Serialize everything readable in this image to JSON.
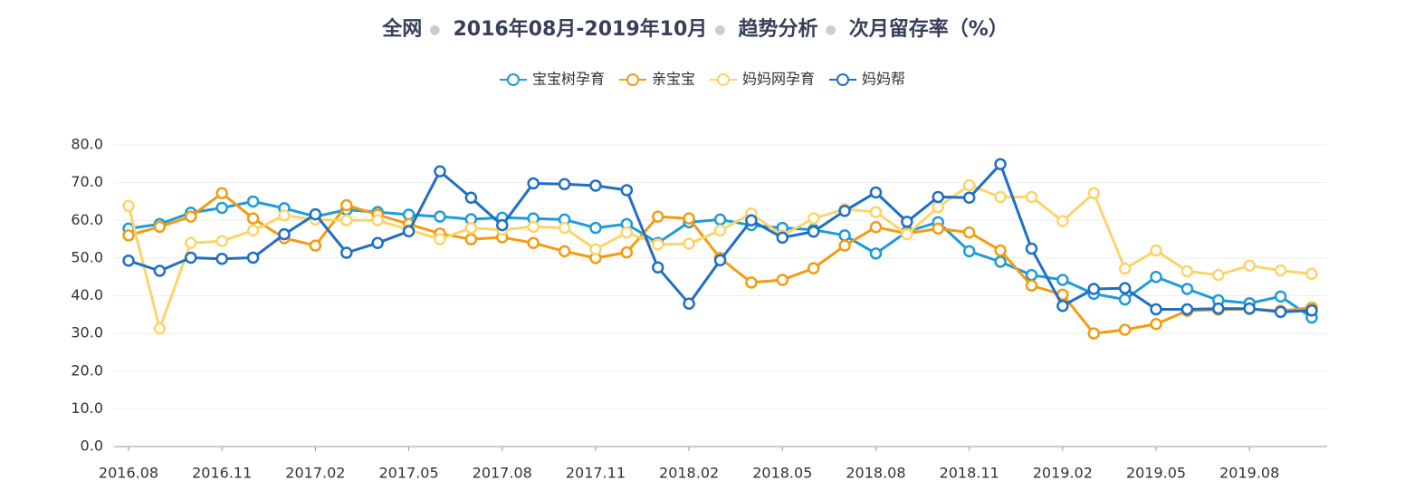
{
  "chart_data": {
    "type": "line",
    "title": [
      "全网",
      "2016年08月-2019年10月",
      "趋势分析",
      "次月留存率（%）"
    ],
    "categories": [
      "2016.08",
      null,
      null,
      "2016.11",
      null,
      null,
      "2017.02",
      null,
      null,
      "2017.05",
      null,
      null,
      "2017.08",
      null,
      null,
      "2017.11",
      null,
      null,
      "2018.02",
      null,
      null,
      "2018.05",
      null,
      null,
      "2018.08",
      null,
      null,
      "2018.11",
      null,
      null,
      "2019.02",
      null,
      null,
      "2019.05",
      null,
      null,
      "2019.08",
      null,
      null
    ],
    "series": [
      {
        "name": "宝宝树孕育",
        "color": "#1f9bd7",
        "values": [
          57.8,
          59,
          62,
          63.3,
          65,
          63.2,
          61,
          62.8,
          62.2,
          61.5,
          61,
          60.3,
          60.7,
          60.5,
          60.2,
          58,
          59,
          54,
          59.5,
          60.2,
          58.7,
          58,
          57.5,
          56,
          51.2,
          57,
          59.5,
          51.8,
          49,
          45.5,
          44.2,
          40.5,
          39,
          45,
          41.8,
          38.8,
          38,
          39.8,
          34.2
        ]
      },
      {
        "name": "亲宝宝",
        "color": "#f39c12",
        "values": [
          56,
          58.3,
          61,
          67.2,
          60.5,
          55.3,
          53.3,
          64,
          61.5,
          59,
          56.5,
          55,
          55.5,
          54,
          51.8,
          50,
          51.5,
          61,
          60.5,
          50,
          43.5,
          44.2,
          47.3,
          53.3,
          58.2,
          56.5,
          57.8,
          56.8,
          52,
          42.7,
          40.3,
          30,
          31,
          32.5,
          36,
          36.3,
          36.5,
          36,
          36.8
        ]
      },
      {
        "name": "妈妈网孕育",
        "color": "#fbd46b",
        "values": [
          63.8,
          31.3,
          54,
          54.5,
          57.3,
          61.3,
          60.2,
          60,
          60,
          57.5,
          55,
          58,
          57.5,
          58.3,
          58,
          52.3,
          56.8,
          53.6,
          53.8,
          57.3,
          61.8,
          56,
          60.5,
          63,
          62.2,
          56.3,
          63.5,
          69.3,
          66.2,
          66.2,
          59.8,
          67.2,
          47.2,
          52,
          46.5,
          45.5,
          48,
          46.7,
          45.8
        ]
      },
      {
        "name": "妈妈帮",
        "color": "#1f6fc5",
        "values": [
          49.3,
          46.6,
          50.1,
          49.8,
          50.1,
          56.3,
          61.6,
          51.4,
          54,
          57.1,
          73,
          66,
          58.7,
          69.8,
          69.6,
          69.2,
          68,
          47.5,
          37.9,
          49.4,
          60,
          55.4,
          57,
          62.5,
          67.4,
          59.6,
          66.2,
          66,
          74.9,
          52.5,
          37.3,
          41.8,
          42,
          36.4,
          36.4,
          36.6,
          36.6,
          35.7,
          36.1
        ]
      }
    ],
    "ylim": [
      0,
      80
    ],
    "yticks": [
      {
        "value": 0,
        "label": "0.0"
      },
      {
        "value": 10,
        "label": "10.0"
      },
      {
        "value": 20,
        "label": "20.0"
      },
      {
        "value": 30,
        "label": "30.0"
      },
      {
        "value": 40,
        "label": "40.0"
      },
      {
        "value": 50,
        "label": "50.0"
      },
      {
        "value": 60,
        "label": "60.0"
      },
      {
        "value": 70,
        "label": "70.0"
      },
      {
        "value": 80,
        "label": "80.0"
      }
    ],
    "grid": true
  }
}
